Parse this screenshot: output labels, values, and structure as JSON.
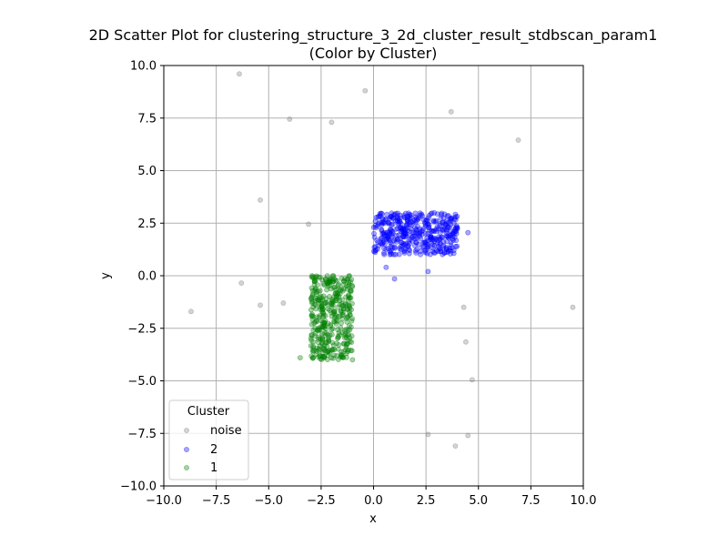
{
  "chart_data": {
    "type": "scatter",
    "title_line1": "2D Scatter Plot for clustering_structure_3_2d_cluster_result_stdbscan_param1",
    "title_line2": "(Color by Cluster)",
    "xlabel": "x",
    "ylabel": "y",
    "xlim": [
      -10,
      10
    ],
    "ylim": [
      -10,
      10
    ],
    "x_ticks": [
      -10,
      -7.5,
      -5,
      -2.5,
      0,
      2.5,
      5,
      7.5,
      10
    ],
    "y_ticks": [
      -10,
      -7.5,
      -5,
      -2.5,
      0,
      2.5,
      5,
      7.5,
      10
    ],
    "x_tick_labels": [
      "−10.0",
      "−7.5",
      "−5.0",
      "−2.5",
      "0.0",
      "2.5",
      "5.0",
      "7.5",
      "10.0"
    ],
    "y_tick_labels": [
      "−10.0",
      "−7.5",
      "−5.0",
      "−2.5",
      "0.0",
      "2.5",
      "5.0",
      "7.5",
      "10.0"
    ],
    "grid": true,
    "legend": {
      "title": "Cluster",
      "placement": "lower-left"
    },
    "series": [
      {
        "name": "noise",
        "color": "#808080",
        "points": [
          [
            -6.4,
            9.6
          ],
          [
            -0.4,
            8.8
          ],
          [
            3.7,
            7.8
          ],
          [
            -4.0,
            7.45
          ],
          [
            -2.0,
            7.3
          ],
          [
            6.9,
            6.45
          ],
          [
            -5.4,
            3.6
          ],
          [
            -3.1,
            2.45
          ],
          [
            -6.3,
            -0.35
          ],
          [
            -4.3,
            -1.3
          ],
          [
            -5.4,
            -1.4
          ],
          [
            -8.7,
            -1.7
          ],
          [
            4.3,
            -1.5
          ],
          [
            9.5,
            -1.5
          ],
          [
            4.4,
            -3.15
          ],
          [
            4.7,
            -4.95
          ],
          [
            2.6,
            -7.55
          ],
          [
            4.5,
            -7.6
          ],
          [
            3.9,
            -8.1
          ]
        ]
      },
      {
        "name": "2",
        "color": "#0000ff",
        "region": {
          "x": [
            0.0,
            4.0
          ],
          "y": [
            1.0,
            3.0
          ],
          "n": 420
        },
        "extra_points": [
          [
            4.5,
            2.05
          ],
          [
            0.6,
            0.4
          ],
          [
            1.0,
            -0.15
          ],
          [
            2.6,
            0.2
          ]
        ]
      },
      {
        "name": "1",
        "color": "#008000",
        "region": {
          "x": [
            -3.0,
            -1.0
          ],
          "y": [
            -4.0,
            0.0
          ],
          "n": 380
        },
        "extra_points": [
          [
            -3.5,
            -3.9
          ]
        ]
      }
    ]
  }
}
